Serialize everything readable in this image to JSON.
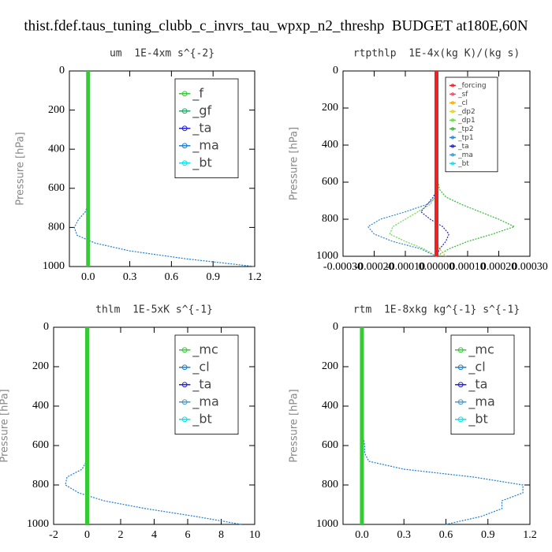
{
  "title": "thist.fdef.taus_tuning_clubb_c_invrs_tau_wpxp_n2_threshp  BUDGET at180E,60N",
  "chart_data": [
    {
      "type": "line",
      "title": "um  1E-4xm s^{-2}",
      "ylabel": "Pressure [hPa]",
      "y": [
        0,
        40,
        80,
        120,
        160,
        200,
        240,
        280,
        320,
        360,
        400,
        440,
        480,
        520,
        560,
        600,
        640,
        680,
        720,
        760,
        800,
        840,
        880,
        920,
        960,
        1000
      ],
      "ylim": [
        1000,
        0
      ],
      "yticks": [
        0,
        200,
        400,
        600,
        800,
        1000
      ],
      "xlim": [
        -0.135,
        1.2
      ],
      "xticks": [
        {
          "value": 0,
          "label": "0.0"
        },
        0.3,
        0.6,
        0.9,
        1.2
      ],
      "series": [
        {
          "name": "_f",
          "color": "#33cc33",
          "values": [
            0,
            0,
            0,
            0,
            0,
            0,
            0,
            0,
            0,
            0,
            0,
            0,
            0,
            0,
            0,
            0,
            0,
            0,
            0,
            0,
            0,
            0,
            0,
            0,
            0,
            0
          ]
        },
        {
          "name": "_gf",
          "color": "#22aa66",
          "values": [
            0,
            0,
            0,
            0,
            0,
            0,
            0,
            0,
            0,
            0,
            0,
            0,
            0,
            0,
            0,
            0,
            0,
            0,
            0,
            0,
            0,
            0,
            0,
            0,
            0,
            0
          ]
        },
        {
          "name": "_ta",
          "color": "#2222dd",
          "values": [
            0,
            0,
            0,
            0,
            0,
            0,
            0,
            0,
            0,
            0,
            0,
            0,
            0,
            0,
            0,
            0,
            0,
            0,
            0,
            0,
            0,
            0,
            0,
            0,
            0,
            0
          ]
        },
        {
          "name": "_ma",
          "color": "#1a7fd6",
          "values": [
            0,
            0,
            0,
            0,
            0,
            0,
            0,
            0,
            0,
            0,
            0,
            0,
            0,
            0,
            0,
            0,
            0,
            0,
            -0.02,
            -0.07,
            -0.1,
            -0.08,
            0.05,
            0.3,
            0.7,
            1.2
          ]
        },
        {
          "name": "_bt",
          "color": "#00e5ee",
          "values": [
            0,
            0,
            0,
            0,
            0,
            0,
            0,
            0,
            0,
            0,
            0,
            0,
            0,
            0,
            0,
            0,
            0,
            0,
            0,
            0,
            0,
            0,
            0,
            0,
            0,
            0
          ]
        }
      ]
    },
    {
      "type": "line",
      "title": "rtpthlp  1E-4x(kg K)/(kg s)",
      "ylabel": "Pressure [hPa]",
      "y": [
        0,
        40,
        80,
        120,
        160,
        200,
        240,
        280,
        320,
        360,
        400,
        440,
        480,
        520,
        560,
        600,
        640,
        680,
        720,
        760,
        800,
        840,
        880,
        920,
        960,
        1000
      ],
      "ylim": [
        1000,
        0
      ],
      "yticks": [
        0,
        200,
        400,
        600,
        800,
        1000
      ],
      "xlim": [
        -0.0003,
        0.0003
      ],
      "xticks": [
        {
          "value": -0.0003,
          "label": "-0.00030"
        },
        {
          "value": -0.0002,
          "label": "-0.00020"
        },
        {
          "value": -0.0001,
          "label": "-0.00010"
        },
        {
          "value": 0,
          "label": "0.00000"
        },
        {
          "value": 0.0001,
          "label": "0.00010"
        },
        {
          "value": 0.0002,
          "label": "0.00020"
        },
        {
          "value": 0.0003,
          "label": "0.00030"
        }
      ],
      "series": [
        {
          "name": "_forcing",
          "color": "#ee2222",
          "values": [
            0,
            0,
            0,
            0,
            0,
            0,
            0,
            0,
            0,
            0,
            0,
            0,
            0,
            0,
            0,
            0,
            0,
            0,
            0,
            0,
            0,
            0,
            0,
            0,
            0,
            0
          ]
        },
        {
          "name": "_sf",
          "color": "#ff4466",
          "values": [
            0,
            0,
            0,
            0,
            0,
            0,
            0,
            0,
            0,
            0,
            0,
            0,
            0,
            0,
            0,
            0,
            0,
            0,
            0,
            0,
            0,
            0,
            0,
            0,
            0,
            0
          ]
        },
        {
          "name": "_cl",
          "color": "#ffaa00",
          "values": [
            0,
            0,
            0,
            0,
            0,
            0,
            0,
            0,
            0,
            0,
            0,
            0,
            0,
            0,
            0,
            0,
            0,
            0,
            0,
            0,
            0,
            0,
            0,
            0,
            1e-05,
            3e-05
          ]
        },
        {
          "name": "_dp2",
          "color": "#dddd00",
          "values": [
            0,
            0,
            0,
            0,
            0,
            0,
            0,
            0,
            0,
            0,
            0,
            0,
            0,
            0,
            0,
            0,
            0,
            0,
            0,
            0,
            0,
            0,
            0,
            0,
            0,
            0
          ]
        },
        {
          "name": "_dp1",
          "color": "#66dd44",
          "values": [
            0,
            0,
            0,
            0,
            0,
            0,
            0,
            0,
            0,
            0,
            0,
            0,
            0,
            0,
            0,
            0,
            0,
            -5e-06,
            -2e-05,
            -6e-05,
            -0.0001,
            -0.00014,
            -0.00015,
            -0.0001,
            -4e-05,
            0
          ]
        },
        {
          "name": "_tp2",
          "color": "#33bb33",
          "values": [
            0,
            0,
            0,
            0,
            0,
            0,
            0,
            0,
            0,
            0,
            0,
            0,
            0,
            0,
            2e-06,
            5e-06,
            1e-05,
            3e-05,
            8e-05,
            0.00014,
            0.0002,
            0.00025,
            0.00018,
            0.0001,
            4e-05,
            0
          ]
        },
        {
          "name": "_tp1",
          "color": "#3388cc",
          "values": [
            0,
            0,
            0,
            0,
            0,
            0,
            0,
            0,
            0,
            0,
            0,
            0,
            0,
            0,
            0,
            0,
            0,
            0,
            -3e-05,
            -0.0001,
            -0.00018,
            -0.00022,
            -0.0002,
            -0.00014,
            -5e-05,
            0
          ]
        },
        {
          "name": "_ta",
          "color": "#2222dd",
          "values": [
            0,
            0,
            0,
            0,
            0,
            0,
            0,
            0,
            0,
            0,
            0,
            0,
            0,
            0,
            0,
            0,
            0,
            -1e-05,
            -3e-05,
            -5e-05,
            -2e-05,
            2e-05,
            4e-05,
            3e-05,
            1e-05,
            0
          ]
        },
        {
          "name": "_ma",
          "color": "#4499cc",
          "values": [
            0,
            0,
            0,
            0,
            0,
            0,
            0,
            0,
            0,
            0,
            0,
            0,
            0,
            0,
            0,
            0,
            0,
            0,
            0,
            0,
            0,
            0,
            0,
            0,
            0,
            0
          ]
        },
        {
          "name": "_bt",
          "color": "#00e5ee",
          "values": [
            0,
            0,
            0,
            0,
            0,
            0,
            0,
            0,
            0,
            0,
            0,
            0,
            0,
            0,
            0,
            0,
            0,
            0,
            0,
            0,
            0,
            0,
            0,
            0,
            0,
            0
          ]
        }
      ]
    },
    {
      "type": "line",
      "title": "thlm  1E-5xK s^{-1}",
      "ylabel": "Pressure [hPa]",
      "y": [
        0,
        40,
        80,
        120,
        160,
        200,
        240,
        280,
        320,
        360,
        400,
        440,
        480,
        520,
        560,
        600,
        640,
        680,
        720,
        760,
        800,
        840,
        880,
        920,
        960,
        1000
      ],
      "ylim": [
        1000,
        0
      ],
      "yticks": [
        0,
        200,
        400,
        600,
        800,
        1000
      ],
      "xlim": [
        -2,
        10
      ],
      "xticks": [
        -2,
        0,
        2,
        4,
        6,
        8,
        10
      ],
      "series": [
        {
          "name": "_mc",
          "color": "#33cc33",
          "values": [
            0,
            0,
            0,
            0,
            0,
            0,
            0,
            0,
            0,
            0,
            0,
            0,
            0,
            0,
            0,
            0,
            0,
            0,
            0,
            0,
            0,
            0,
            0,
            0,
            0,
            0
          ]
        },
        {
          "name": "_cl",
          "color": "#1a7fd6",
          "values": [
            0,
            0,
            0,
            0,
            0,
            0,
            0,
            0,
            0,
            0,
            0,
            0,
            0,
            0,
            0,
            0,
            0,
            -0.05,
            -0.3,
            -1.2,
            -1.3,
            -0.5,
            1,
            3.5,
            6.5,
            9.2
          ]
        },
        {
          "name": "_ta",
          "color": "#2222dd",
          "values": [
            0,
            0,
            0,
            0,
            0,
            0,
            0,
            0,
            0,
            0,
            0,
            0,
            0,
            0,
            0,
            0,
            0,
            0,
            0,
            0,
            0,
            0,
            0,
            0,
            0,
            0
          ]
        },
        {
          "name": "_ma",
          "color": "#4499cc",
          "values": [
            0,
            0,
            0,
            0,
            0,
            0,
            0,
            0,
            0,
            0,
            0,
            0,
            0,
            0,
            0,
            0,
            0,
            0,
            0,
            0,
            0,
            0,
            0,
            0,
            0,
            0
          ]
        },
        {
          "name": "_bt",
          "color": "#00e5ee",
          "values": [
            0,
            0,
            0,
            0,
            0,
            0,
            0,
            0,
            0,
            0,
            0,
            0,
            0,
            0,
            0,
            0,
            0,
            0,
            0,
            0,
            0,
            0,
            0,
            0,
            0,
            0
          ]
        }
      ]
    },
    {
      "type": "line",
      "title": "rtm  1E-8xkg kg^{-1} s^{-1}",
      "ylabel": "Pressure [hPa]",
      "y": [
        0,
        40,
        80,
        120,
        160,
        200,
        240,
        280,
        320,
        360,
        400,
        440,
        480,
        520,
        560,
        600,
        640,
        680,
        720,
        760,
        800,
        840,
        880,
        920,
        960,
        1000
      ],
      "ylim": [
        1000,
        0
      ],
      "yticks": [
        0,
        200,
        400,
        600,
        800,
        1000
      ],
      "xlim": [
        -0.135,
        1.2
      ],
      "xticks": [
        {
          "value": 0,
          "label": "0.0"
        },
        0.3,
        0.6,
        0.9,
        1.2
      ],
      "series": [
        {
          "name": "_mc",
          "color": "#33cc33",
          "values": [
            0,
            0,
            0,
            0,
            0,
            0,
            0,
            0,
            0,
            0,
            0,
            0,
            0,
            0,
            0,
            0,
            0,
            0,
            0,
            0,
            0,
            0,
            0,
            0,
            0,
            0
          ]
        },
        {
          "name": "_cl",
          "color": "#1a7fd6",
          "values": [
            0,
            0,
            0,
            0,
            0,
            0,
            0,
            0,
            0,
            0,
            0,
            0,
            0,
            0.005,
            0.01,
            0.02,
            0.02,
            0.05,
            0.3,
            0.8,
            1.15,
            1.15,
            1,
            1,
            0.85,
            0.6
          ]
        },
        {
          "name": "_ta",
          "color": "#2222dd",
          "values": [
            0,
            0,
            0,
            0,
            0,
            0,
            0,
            0,
            0,
            0,
            0,
            0,
            0,
            0,
            0,
            0,
            0,
            0,
            0,
            0,
            0,
            0,
            0,
            0,
            0,
            0
          ]
        },
        {
          "name": "_ma",
          "color": "#4499cc",
          "values": [
            0,
            0,
            0,
            0,
            0,
            0,
            0,
            0,
            0,
            0,
            0,
            0,
            0,
            0,
            0,
            0,
            0,
            0,
            0,
            0,
            0,
            0,
            0,
            0,
            0,
            0
          ]
        },
        {
          "name": "_bt",
          "color": "#00e5ee",
          "values": [
            0,
            0,
            0,
            0,
            0,
            0,
            0,
            0,
            0,
            0,
            0,
            0,
            0,
            0,
            0,
            0,
            0,
            0,
            0,
            0,
            0,
            0,
            0,
            0,
            0,
            0
          ]
        }
      ]
    }
  ]
}
